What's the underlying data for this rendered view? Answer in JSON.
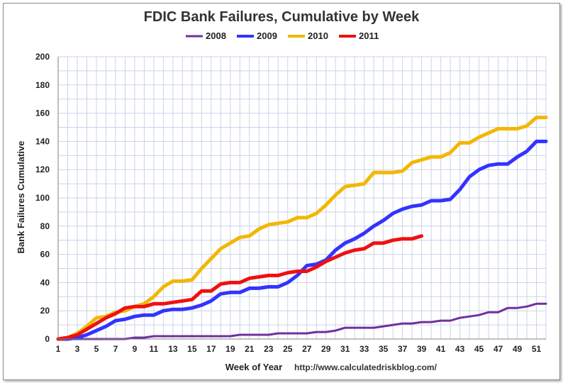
{
  "chart_data": {
    "type": "line",
    "title": "FDIC Bank Failures, Cumulative by Week",
    "xlabel": "Week of Year",
    "ylabel": "Bank Failures Cumulative",
    "source": "http://www.calculatedriskblog.com/",
    "xlim": [
      1,
      52
    ],
    "ylim": [
      0,
      200
    ],
    "yticks": [
      0,
      20,
      40,
      60,
      80,
      100,
      120,
      140,
      160,
      180,
      200
    ],
    "xticks": [
      1,
      3,
      5,
      7,
      9,
      11,
      13,
      15,
      17,
      19,
      21,
      23,
      25,
      27,
      29,
      31,
      33,
      35,
      37,
      39,
      41,
      43,
      45,
      47,
      49,
      51
    ],
    "series": [
      {
        "name": "2008",
        "color": "#7030A0",
        "x": [
          1,
          2,
          3,
          4,
          5,
          6,
          7,
          8,
          9,
          10,
          11,
          12,
          13,
          14,
          15,
          16,
          17,
          18,
          19,
          20,
          21,
          22,
          23,
          24,
          25,
          26,
          27,
          28,
          29,
          30,
          31,
          32,
          33,
          34,
          35,
          36,
          37,
          38,
          39,
          40,
          41,
          42,
          43,
          44,
          45,
          46,
          47,
          48,
          49,
          50,
          51,
          52
        ],
        "values": [
          0,
          0,
          0,
          0,
          0,
          0,
          0,
          0,
          1,
          1,
          2,
          2,
          2,
          2,
          2,
          2,
          2,
          2,
          2,
          3,
          3,
          3,
          3,
          4,
          4,
          4,
          4,
          5,
          5,
          6,
          8,
          8,
          8,
          8,
          9,
          10,
          11,
          11,
          12,
          12,
          13,
          13,
          15,
          16,
          17,
          19,
          19,
          22,
          22,
          23,
          25,
          25
        ]
      },
      {
        "name": "2009",
        "color": "#3333FF",
        "x": [
          1,
          2,
          3,
          4,
          5,
          6,
          7,
          8,
          9,
          10,
          11,
          12,
          13,
          14,
          15,
          16,
          17,
          18,
          19,
          20,
          21,
          22,
          23,
          24,
          25,
          26,
          27,
          28,
          29,
          30,
          31,
          32,
          33,
          34,
          35,
          36,
          37,
          38,
          39,
          40,
          41,
          42,
          43,
          44,
          45,
          46,
          47,
          48,
          49,
          50,
          51,
          52
        ],
        "values": [
          0,
          0,
          1,
          3,
          6,
          9,
          13,
          14,
          16,
          17,
          17,
          20,
          21,
          21,
          22,
          24,
          27,
          32,
          33,
          33,
          36,
          36,
          37,
          37,
          40,
          45,
          52,
          53,
          56,
          63,
          68,
          71,
          75,
          80,
          84,
          89,
          92,
          94,
          95,
          98,
          98,
          99,
          106,
          115,
          120,
          123,
          124,
          124,
          129,
          133,
          140,
          140
        ]
      },
      {
        "name": "2010",
        "color": "#F2B705",
        "x": [
          1,
          2,
          3,
          4,
          5,
          6,
          7,
          8,
          9,
          10,
          11,
          12,
          13,
          14,
          15,
          16,
          17,
          18,
          19,
          20,
          21,
          22,
          23,
          24,
          25,
          26,
          27,
          28,
          29,
          30,
          31,
          32,
          33,
          34,
          35,
          36,
          37,
          38,
          39,
          40,
          41,
          42,
          43,
          44,
          45,
          46,
          47,
          48,
          49,
          50,
          51,
          52
        ],
        "values": [
          0,
          1,
          4,
          9,
          15,
          16,
          19,
          20,
          23,
          25,
          30,
          37,
          41,
          41,
          42,
          50,
          57,
          64,
          68,
          72,
          73,
          78,
          81,
          82,
          83,
          86,
          86,
          89,
          95,
          102,
          108,
          109,
          110,
          118,
          118,
          118,
          119,
          125,
          127,
          129,
          129,
          132,
          139,
          139,
          143,
          146,
          149,
          149,
          149,
          151,
          157,
          157
        ]
      },
      {
        "name": "2011",
        "color": "#EE1111",
        "x": [
          1,
          2,
          3,
          4,
          5,
          6,
          7,
          8,
          9,
          10,
          11,
          12,
          13,
          14,
          15,
          16,
          17,
          18,
          19,
          20,
          21,
          22,
          23,
          24,
          25,
          26,
          27,
          28,
          29,
          30,
          31,
          32,
          33,
          34,
          35,
          36,
          37,
          38,
          39
        ],
        "values": [
          0,
          1,
          3,
          7,
          11,
          15,
          18,
          22,
          23,
          23,
          25,
          25,
          26,
          27,
          28,
          34,
          34,
          39,
          40,
          40,
          43,
          44,
          45,
          45,
          47,
          48,
          48,
          51,
          55,
          58,
          61,
          63,
          64,
          68,
          68,
          70,
          71,
          71,
          73
        ]
      }
    ]
  }
}
